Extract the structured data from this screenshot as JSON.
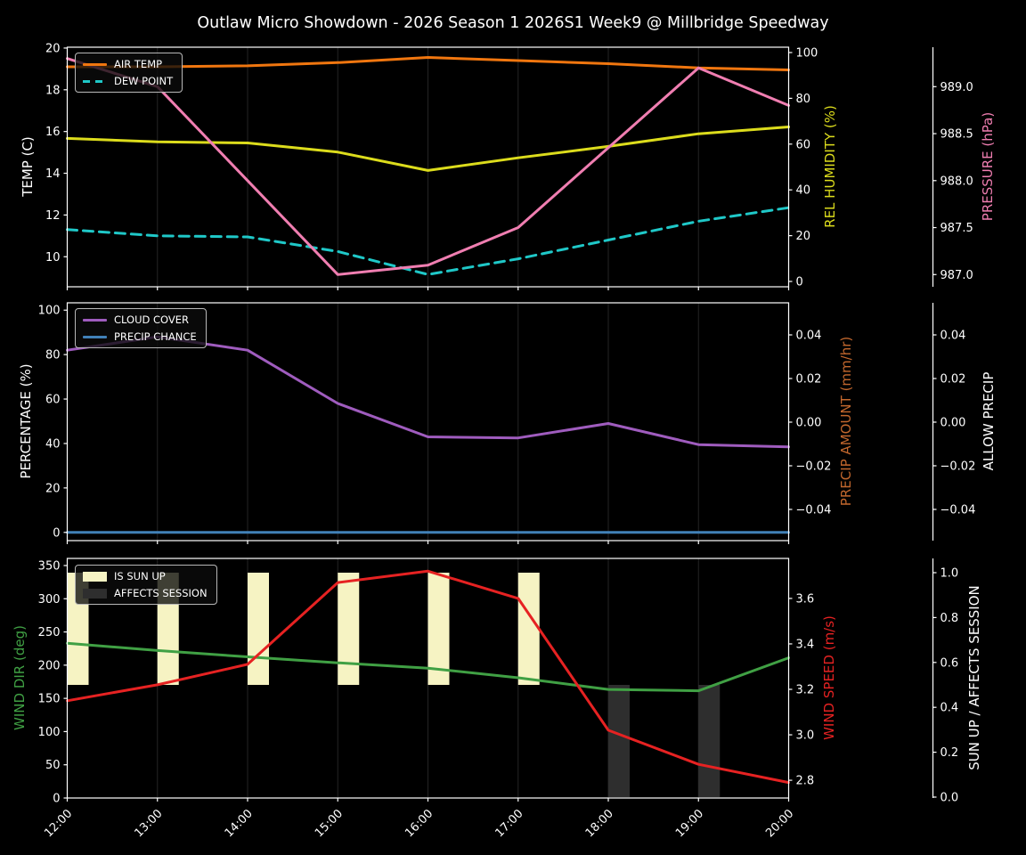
{
  "title": "Outlaw Micro Showdown - 2026 Season 1 2026S1 Week9 @ Millbridge Speedway",
  "colors": {
    "background": "#000000",
    "text": "#ffffff",
    "grid": "#242424",
    "spine": "#ffffff",
    "air_temp": "#f0760f",
    "dew_point": "#1fc8c8",
    "humidity": "#dcdc1c",
    "pressure": "#f07eb1",
    "cloud_cover": "#9f5cbe",
    "precip_chance": "#4181b8",
    "precip_amount": "#c2672d",
    "allow_precip": "#ffffff",
    "wind_dir": "#40a044",
    "wind_speed": "#e62222",
    "sun_up": "#f6f3c3",
    "affects_session": "#2e2e2e"
  },
  "x_labels": [
    "12:00",
    "13:00",
    "14:00",
    "15:00",
    "16:00",
    "17:00",
    "18:00",
    "19:00",
    "20:00"
  ],
  "x_hours": [
    12,
    13,
    14,
    15,
    16,
    17,
    18,
    19,
    20
  ],
  "chart_data": [
    {
      "id": "conditions",
      "type": "line",
      "legend": [
        {
          "label": "AIR TEMP",
          "color_key": "air_temp",
          "style": "line"
        },
        {
          "label": "DEW POINT",
          "color_key": "dew_point",
          "style": "dashed"
        }
      ],
      "axes": {
        "left": {
          "label": "TEMP (C)",
          "color_key": "text",
          "range": [
            8.56,
            20.04
          ],
          "ticks": [
            [
              20,
              "20"
            ],
            [
              18,
              "18"
            ],
            [
              16,
              "16"
            ],
            [
              14,
              "14"
            ],
            [
              12,
              "12"
            ],
            [
              10,
              "10"
            ]
          ]
        },
        "right1": {
          "label": "REL HUMIDITY (%)",
          "color_key": "humidity",
          "range": [
            -2.33,
            102.33
          ],
          "ticks": [
            [
              100,
              "100"
            ],
            [
              80,
              "80"
            ],
            [
              60,
              "60"
            ],
            [
              40,
              "40"
            ],
            [
              20,
              "20"
            ],
            [
              0,
              "0"
            ]
          ]
        },
        "right2": {
          "label": "PRESSURE (hPa)",
          "color_key": "pressure",
          "range": [
            986.87,
            989.42
          ],
          "ticks": [
            [
              989.0,
              "989.0"
            ],
            [
              988.5,
              "988.5"
            ],
            [
              988.0,
              "988.0"
            ],
            [
              987.5,
              "987.5"
            ],
            [
              987.0,
              "987.0"
            ]
          ]
        }
      },
      "series": [
        {
          "name": "AIR TEMP",
          "axis": "left",
          "color_key": "air_temp",
          "dashed": false,
          "values": [
            19.1,
            19.1,
            19.15,
            19.3,
            19.55,
            19.4,
            19.25,
            19.05,
            18.95
          ]
        },
        {
          "name": "DEW POINT",
          "axis": "left",
          "color_key": "dew_point",
          "dashed": true,
          "values": [
            11.3,
            11.0,
            10.95,
            10.25,
            9.15,
            9.9,
            10.8,
            11.7,
            12.35
          ]
        },
        {
          "name": "REL HUMIDITY",
          "axis": "right1",
          "color_key": "humidity",
          "dashed": false,
          "values": [
            62.5,
            61.0,
            60.5,
            56.5,
            48.5,
            54.0,
            59.0,
            64.5,
            67.5
          ]
        },
        {
          "name": "PRESSURE",
          "axis": "right2",
          "color_key": "pressure",
          "dashed": false,
          "values": [
            989.3,
            989.0,
            988.0,
            987.0,
            987.1,
            987.5,
            988.35,
            989.2,
            988.8
          ]
        }
      ]
    },
    {
      "id": "precipitation",
      "type": "line",
      "legend": [
        {
          "label": "CLOUD COVER",
          "color_key": "cloud_cover",
          "style": "line"
        },
        {
          "label": "PRECIP CHANCE",
          "color_key": "precip_chance",
          "style": "line"
        }
      ],
      "axes": {
        "left": {
          "label": "PERCENTAGE (%)",
          "color_key": "text",
          "range": [
            -3.7,
            103.3
          ],
          "ticks": [
            [
              100,
              "100"
            ],
            [
              80,
              "80"
            ],
            [
              60,
              "60"
            ],
            [
              40,
              "40"
            ],
            [
              20,
              "20"
            ],
            [
              0,
              "0"
            ]
          ]
        },
        "right1": {
          "label": "PRECIP AMOUNT (mm/hr)",
          "color_key": "precip_amount",
          "range": [
            -0.0543,
            0.0547
          ],
          "ticks": [
            [
              0.04,
              "0.04"
            ],
            [
              0.02,
              "0.02"
            ],
            [
              0,
              "0.00"
            ],
            [
              -0.02,
              "−0.02"
            ],
            [
              -0.04,
              "−0.04"
            ]
          ]
        },
        "right2": {
          "label": "ALLOW PRECIP",
          "color_key": "allow_precip",
          "range": [
            -0.0543,
            0.0547
          ],
          "ticks": [
            [
              0.04,
              "0.04"
            ],
            [
              0.02,
              "0.02"
            ],
            [
              0,
              "0.00"
            ],
            [
              -0.02,
              "−0.02"
            ],
            [
              -0.04,
              "−0.04"
            ]
          ]
        }
      },
      "series": [
        {
          "name": "CLOUD COVER",
          "axis": "left",
          "color_key": "cloud_cover",
          "dashed": false,
          "values": [
            82,
            88,
            82,
            58,
            43,
            42.5,
            49,
            39.5,
            38.5
          ]
        },
        {
          "name": "PRECIP CHANCE",
          "axis": "left",
          "color_key": "precip_chance",
          "dashed": false,
          "values": [
            0,
            0,
            0,
            0,
            0,
            0,
            0,
            0,
            0
          ]
        }
      ]
    },
    {
      "id": "wind-sun",
      "type": "line+bar",
      "legend": [
        {
          "label": "IS SUN UP",
          "color_key": "sun_up",
          "style": "patch"
        },
        {
          "label": "AFFECTS SESSION",
          "color_key": "affects_session",
          "style": "patch"
        }
      ],
      "axes": {
        "left": {
          "label": "WIND DIR (deg)",
          "color_key": "wind_dir",
          "range": [
            0,
            360.7
          ],
          "ticks": [
            [
              350,
              "350"
            ],
            [
              300,
              "300"
            ],
            [
              250,
              "250"
            ],
            [
              200,
              "200"
            ],
            [
              150,
              "150"
            ],
            [
              100,
              "100"
            ],
            [
              50,
              "50"
            ],
            [
              0,
              "0"
            ]
          ]
        },
        "right1": {
          "label": "WIND SPEED (m/s)",
          "color_key": "wind_speed",
          "range": [
            2.722,
            3.776
          ],
          "ticks": [
            [
              3.6,
              "3.6"
            ],
            [
              3.4,
              "3.4"
            ],
            [
              3.2,
              "3.2"
            ],
            [
              3.0,
              "3.0"
            ],
            [
              2.8,
              "2.8"
            ]
          ]
        },
        "right2": {
          "label": "SUN UP / AFFECTS SESSION",
          "color_key": "text",
          "range": [
            -0.004,
            1.0635
          ],
          "ticks": [
            [
              1.0,
              "1.0"
            ],
            [
              0.8,
              "0.8"
            ],
            [
              0.6,
              "0.6"
            ],
            [
              0.4,
              "0.4"
            ],
            [
              0.2,
              "0.2"
            ],
            [
              0.0,
              "0.0"
            ]
          ]
        }
      },
      "series": [
        {
          "name": "WIND DIR",
          "axis": "left",
          "color_key": "wind_dir",
          "dashed": false,
          "values": [
            233,
            222,
            212.5,
            203.5,
            195.5,
            181,
            163.5,
            161.5,
            211
          ]
        },
        {
          "name": "WIND SPEED",
          "axis": "right1",
          "color_key": "wind_speed",
          "dashed": false,
          "values": [
            3.15,
            3.22,
            3.31,
            3.67,
            3.72,
            3.6,
            3.02,
            2.87,
            2.79
          ]
        }
      ],
      "bars": [
        {
          "name": "IS SUN UP",
          "axis": "right2",
          "color_key": "sun_up",
          "hours": [
            12,
            13,
            14,
            15,
            16,
            17
          ],
          "from": 0.5,
          "to": 1.0,
          "values_by_hour": [
            1,
            1,
            1,
            1,
            1,
            1,
            0,
            0,
            0
          ]
        },
        {
          "name": "AFFECTS SESSION",
          "axis": "right2",
          "color_key": "affects_session",
          "hours": [
            18,
            19
          ],
          "from": 0.0,
          "to": 0.5,
          "values_by_hour": [
            0,
            0,
            0,
            0,
            0,
            0,
            1,
            1,
            0
          ]
        }
      ]
    }
  ]
}
